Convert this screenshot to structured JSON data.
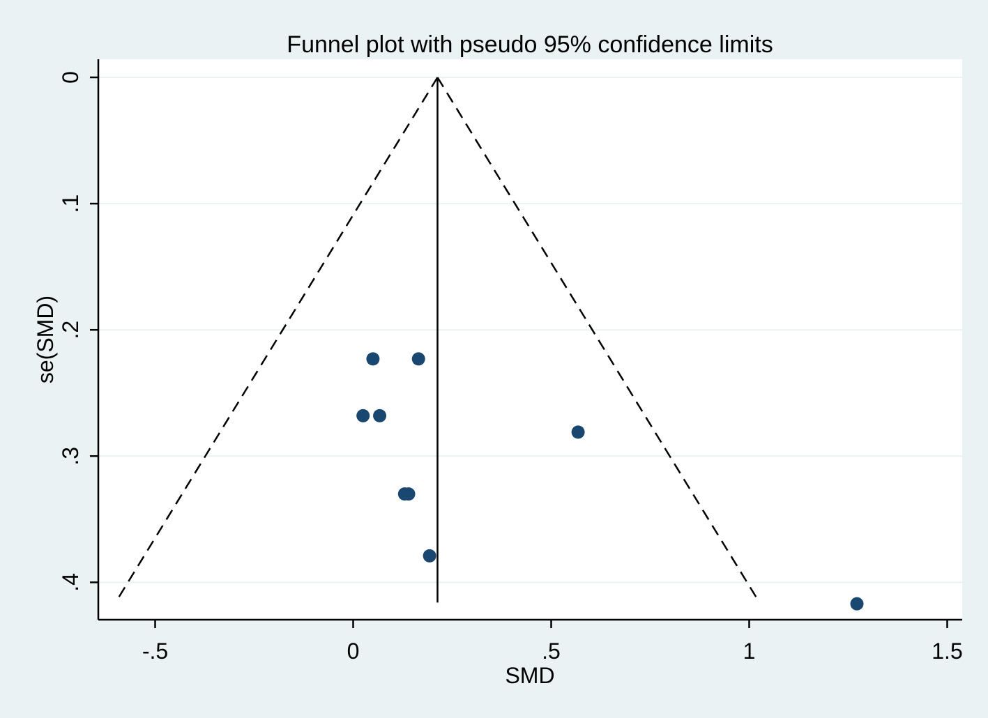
{
  "chart_data": {
    "type": "scatter",
    "title": "Funnel plot with pseudo 95% confidence limits",
    "xlabel": "SMD",
    "ylabel": "se(SMD)",
    "xlim": [
      -0.645,
      1.5445
    ],
    "ylim": [
      0,
      0.429
    ],
    "y_reversed": true,
    "xticks": [
      -0.5,
      0,
      0.5,
      1,
      1.5
    ],
    "xtick_labels": [
      "-.5",
      "0",
      ".5",
      "1",
      "1.5"
    ],
    "yticks": [
      0,
      0.1,
      0.2,
      0.3,
      0.4
    ],
    "ytick_labels": [
      "0",
      ".1",
      ".2",
      ".3",
      ".4"
    ],
    "grid": true,
    "pooled_estimate": 0.213,
    "confidence_limits": {
      "apex": [
        0.213,
        0
      ],
      "left_base": [
        -0.6,
        0.416
      ],
      "right_base": [
        1.026,
        0.416
      ]
    },
    "points": [
      {
        "x": 0.05,
        "y": 0.223
      },
      {
        "x": 0.165,
        "y": 0.223
      },
      {
        "x": 0.025,
        "y": 0.268
      },
      {
        "x": 0.067,
        "y": 0.268
      },
      {
        "x": 0.568,
        "y": 0.281
      },
      {
        "x": 0.13,
        "y": 0.33
      },
      {
        "x": 0.14,
        "y": 0.33
      },
      {
        "x": 0.193,
        "y": 0.379
      },
      {
        "x": 1.272,
        "y": 0.417
      }
    ],
    "marker_color": "#1a476f",
    "line_color": "#000000",
    "plot_background": "#ffffff",
    "page_background": "#eaf2f3",
    "grid_color": "#eaf2f3"
  }
}
